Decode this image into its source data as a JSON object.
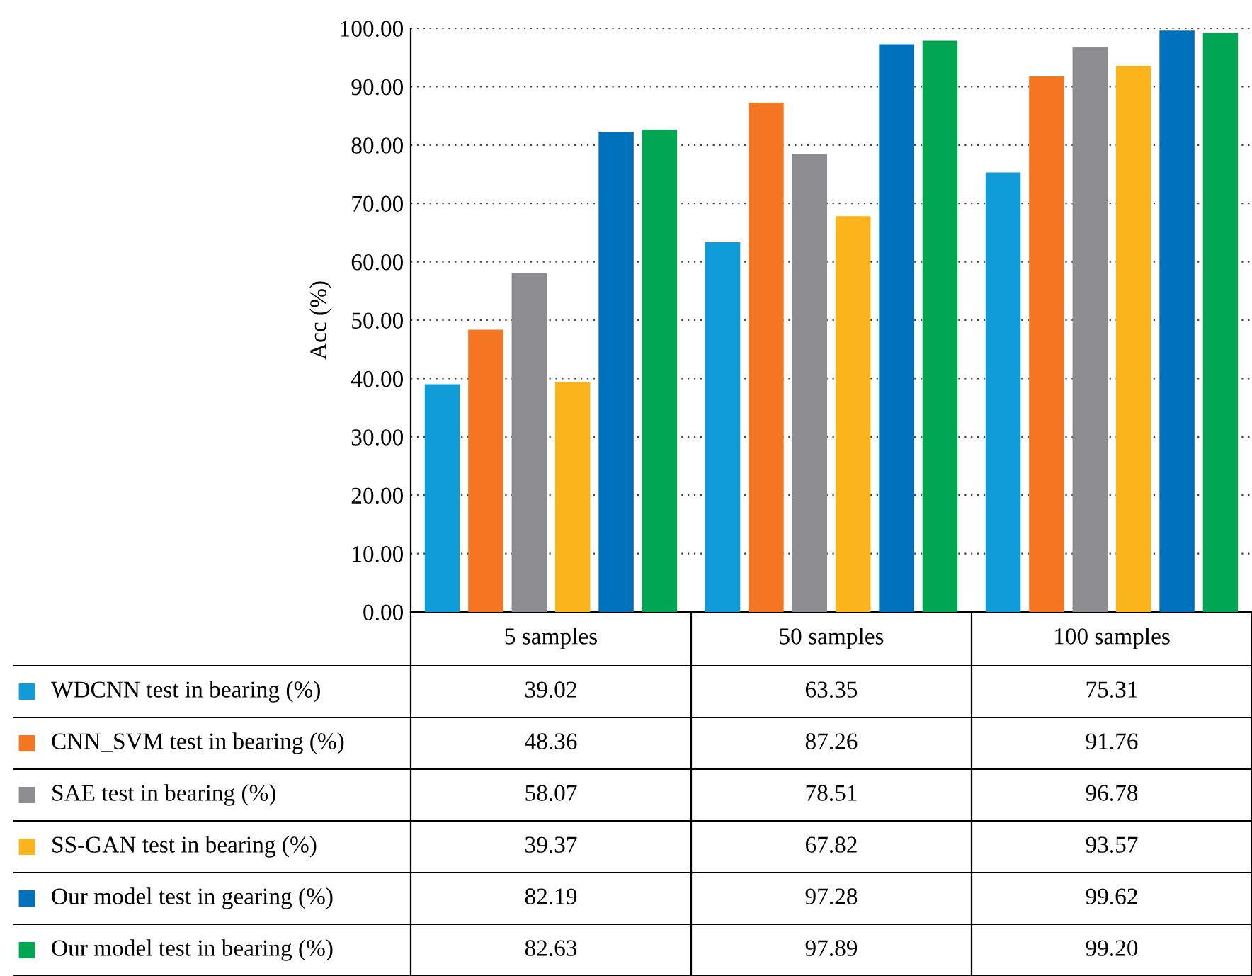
{
  "chart_data": {
    "type": "bar",
    "ylabel": "Acc (%)",
    "categories": [
      "5 samples",
      "50 samples",
      "100 samples"
    ],
    "ylim": [
      0,
      100
    ],
    "yticks": [
      {
        "value": 0,
        "label": "0.00"
      },
      {
        "value": 10,
        "label": "10.00"
      },
      {
        "value": 20,
        "label": "20.00"
      },
      {
        "value": 30,
        "label": "30.00"
      },
      {
        "value": 40,
        "label": "40.00"
      },
      {
        "value": 50,
        "label": "50.00"
      },
      {
        "value": 60,
        "label": "60.00"
      },
      {
        "value": 70,
        "label": "70.00"
      },
      {
        "value": 80,
        "label": "80.00"
      },
      {
        "value": 90,
        "label": "90.00"
      },
      {
        "value": 100,
        "label": "100.00"
      }
    ],
    "grid": "y",
    "legend": "bottom left",
    "series": [
      {
        "name": "WDCNN test in bearing (%)",
        "color": "#0e9bd8",
        "values": [
          39.02,
          63.35,
          75.31
        ],
        "value_labels": [
          "39.02",
          "63.35",
          "75.31"
        ]
      },
      {
        "name": "CNN_SVM test in bearing (%)",
        "color": "#f47522",
        "values": [
          48.36,
          87.26,
          91.76
        ],
        "value_labels": [
          "48.36",
          "87.26",
          "91.76"
        ]
      },
      {
        "name": "SAE test in bearing (%)",
        "color": "#8d8c8e",
        "values": [
          58.07,
          78.51,
          96.78
        ],
        "value_labels": [
          "58.07",
          "78.51",
          "96.78"
        ]
      },
      {
        "name": "SS-GAN test in bearing (%)",
        "color": "#fbb31b",
        "values": [
          39.37,
          67.82,
          93.57
        ],
        "value_labels": [
          "39.37",
          "67.82",
          "93.57"
        ]
      },
      {
        "name": "Our model test in gearing (%)",
        "color": "#0071bd",
        "values": [
          82.19,
          97.28,
          99.62
        ],
        "value_labels": [
          "82.19",
          "97.28",
          "99.62"
        ]
      },
      {
        "name": "Our model test in bearing (%)",
        "color": "#00a651",
        "values": [
          82.63,
          97.89,
          99.2
        ],
        "value_labels": [
          "82.63",
          "97.89",
          "99.20"
        ]
      }
    ]
  }
}
